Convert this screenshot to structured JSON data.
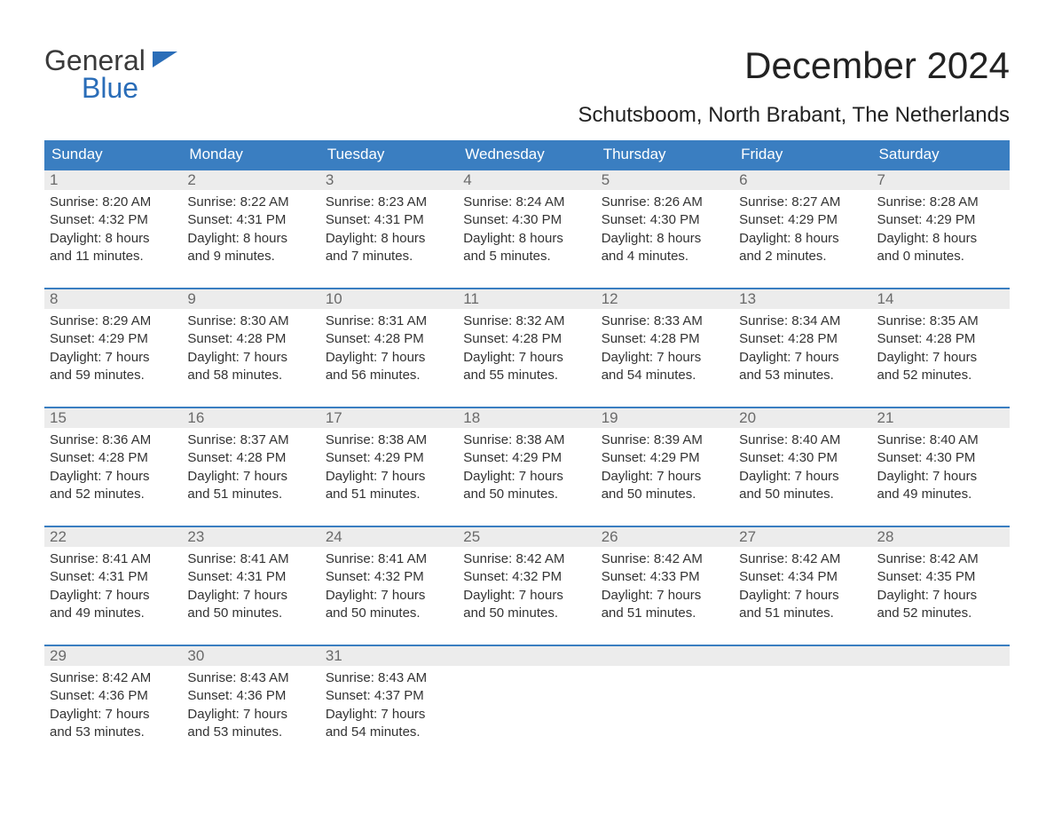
{
  "brand": {
    "word1": "General",
    "word2": "Blue",
    "word1_color": "#3a3a3a",
    "word2_color": "#2a6db8",
    "flag_color": "#2a6db8"
  },
  "title": "December 2024",
  "location": "Schutsboom, North Brabant, The Netherlands",
  "colors": {
    "header_bg": "#3a7ec1",
    "header_fg": "#ffffff",
    "daynum_bg": "#ececec",
    "daynum_fg": "#6a6a6a",
    "divider": "#3a7ec1",
    "text": "#333333",
    "page_bg": "#ffffff"
  },
  "fonts": {
    "title_size_pt": 32,
    "location_size_pt": 18,
    "dow_size_pt": 13,
    "body_size_pt": 11
  },
  "days_of_week": [
    "Sunday",
    "Monday",
    "Tuesday",
    "Wednesday",
    "Thursday",
    "Friday",
    "Saturday"
  ],
  "weeks": [
    [
      {
        "n": "1",
        "sunrise": "Sunrise: 8:20 AM",
        "sunset": "Sunset: 4:32 PM",
        "d1": "Daylight: 8 hours",
        "d2": "and 11 minutes."
      },
      {
        "n": "2",
        "sunrise": "Sunrise: 8:22 AM",
        "sunset": "Sunset: 4:31 PM",
        "d1": "Daylight: 8 hours",
        "d2": "and 9 minutes."
      },
      {
        "n": "3",
        "sunrise": "Sunrise: 8:23 AM",
        "sunset": "Sunset: 4:31 PM",
        "d1": "Daylight: 8 hours",
        "d2": "and 7 minutes."
      },
      {
        "n": "4",
        "sunrise": "Sunrise: 8:24 AM",
        "sunset": "Sunset: 4:30 PM",
        "d1": "Daylight: 8 hours",
        "d2": "and 5 minutes."
      },
      {
        "n": "5",
        "sunrise": "Sunrise: 8:26 AM",
        "sunset": "Sunset: 4:30 PM",
        "d1": "Daylight: 8 hours",
        "d2": "and 4 minutes."
      },
      {
        "n": "6",
        "sunrise": "Sunrise: 8:27 AM",
        "sunset": "Sunset: 4:29 PM",
        "d1": "Daylight: 8 hours",
        "d2": "and 2 minutes."
      },
      {
        "n": "7",
        "sunrise": "Sunrise: 8:28 AM",
        "sunset": "Sunset: 4:29 PM",
        "d1": "Daylight: 8 hours",
        "d2": "and 0 minutes."
      }
    ],
    [
      {
        "n": "8",
        "sunrise": "Sunrise: 8:29 AM",
        "sunset": "Sunset: 4:29 PM",
        "d1": "Daylight: 7 hours",
        "d2": "and 59 minutes."
      },
      {
        "n": "9",
        "sunrise": "Sunrise: 8:30 AM",
        "sunset": "Sunset: 4:28 PM",
        "d1": "Daylight: 7 hours",
        "d2": "and 58 minutes."
      },
      {
        "n": "10",
        "sunrise": "Sunrise: 8:31 AM",
        "sunset": "Sunset: 4:28 PM",
        "d1": "Daylight: 7 hours",
        "d2": "and 56 minutes."
      },
      {
        "n": "11",
        "sunrise": "Sunrise: 8:32 AM",
        "sunset": "Sunset: 4:28 PM",
        "d1": "Daylight: 7 hours",
        "d2": "and 55 minutes."
      },
      {
        "n": "12",
        "sunrise": "Sunrise: 8:33 AM",
        "sunset": "Sunset: 4:28 PM",
        "d1": "Daylight: 7 hours",
        "d2": "and 54 minutes."
      },
      {
        "n": "13",
        "sunrise": "Sunrise: 8:34 AM",
        "sunset": "Sunset: 4:28 PM",
        "d1": "Daylight: 7 hours",
        "d2": "and 53 minutes."
      },
      {
        "n": "14",
        "sunrise": "Sunrise: 8:35 AM",
        "sunset": "Sunset: 4:28 PM",
        "d1": "Daylight: 7 hours",
        "d2": "and 52 minutes."
      }
    ],
    [
      {
        "n": "15",
        "sunrise": "Sunrise: 8:36 AM",
        "sunset": "Sunset: 4:28 PM",
        "d1": "Daylight: 7 hours",
        "d2": "and 52 minutes."
      },
      {
        "n": "16",
        "sunrise": "Sunrise: 8:37 AM",
        "sunset": "Sunset: 4:28 PM",
        "d1": "Daylight: 7 hours",
        "d2": "and 51 minutes."
      },
      {
        "n": "17",
        "sunrise": "Sunrise: 8:38 AM",
        "sunset": "Sunset: 4:29 PM",
        "d1": "Daylight: 7 hours",
        "d2": "and 51 minutes."
      },
      {
        "n": "18",
        "sunrise": "Sunrise: 8:38 AM",
        "sunset": "Sunset: 4:29 PM",
        "d1": "Daylight: 7 hours",
        "d2": "and 50 minutes."
      },
      {
        "n": "19",
        "sunrise": "Sunrise: 8:39 AM",
        "sunset": "Sunset: 4:29 PM",
        "d1": "Daylight: 7 hours",
        "d2": "and 50 minutes."
      },
      {
        "n": "20",
        "sunrise": "Sunrise: 8:40 AM",
        "sunset": "Sunset: 4:30 PM",
        "d1": "Daylight: 7 hours",
        "d2": "and 50 minutes."
      },
      {
        "n": "21",
        "sunrise": "Sunrise: 8:40 AM",
        "sunset": "Sunset: 4:30 PM",
        "d1": "Daylight: 7 hours",
        "d2": "and 49 minutes."
      }
    ],
    [
      {
        "n": "22",
        "sunrise": "Sunrise: 8:41 AM",
        "sunset": "Sunset: 4:31 PM",
        "d1": "Daylight: 7 hours",
        "d2": "and 49 minutes."
      },
      {
        "n": "23",
        "sunrise": "Sunrise: 8:41 AM",
        "sunset": "Sunset: 4:31 PM",
        "d1": "Daylight: 7 hours",
        "d2": "and 50 minutes."
      },
      {
        "n": "24",
        "sunrise": "Sunrise: 8:41 AM",
        "sunset": "Sunset: 4:32 PM",
        "d1": "Daylight: 7 hours",
        "d2": "and 50 minutes."
      },
      {
        "n": "25",
        "sunrise": "Sunrise: 8:42 AM",
        "sunset": "Sunset: 4:32 PM",
        "d1": "Daylight: 7 hours",
        "d2": "and 50 minutes."
      },
      {
        "n": "26",
        "sunrise": "Sunrise: 8:42 AM",
        "sunset": "Sunset: 4:33 PM",
        "d1": "Daylight: 7 hours",
        "d2": "and 51 minutes."
      },
      {
        "n": "27",
        "sunrise": "Sunrise: 8:42 AM",
        "sunset": "Sunset: 4:34 PM",
        "d1": "Daylight: 7 hours",
        "d2": "and 51 minutes."
      },
      {
        "n": "28",
        "sunrise": "Sunrise: 8:42 AM",
        "sunset": "Sunset: 4:35 PM",
        "d1": "Daylight: 7 hours",
        "d2": "and 52 minutes."
      }
    ],
    [
      {
        "n": "29",
        "sunrise": "Sunrise: 8:42 AM",
        "sunset": "Sunset: 4:36 PM",
        "d1": "Daylight: 7 hours",
        "d2": "and 53 minutes."
      },
      {
        "n": "30",
        "sunrise": "Sunrise: 8:43 AM",
        "sunset": "Sunset: 4:36 PM",
        "d1": "Daylight: 7 hours",
        "d2": "and 53 minutes."
      },
      {
        "n": "31",
        "sunrise": "Sunrise: 8:43 AM",
        "sunset": "Sunset: 4:37 PM",
        "d1": "Daylight: 7 hours",
        "d2": "and 54 minutes."
      },
      {
        "n": "",
        "sunrise": "",
        "sunset": "",
        "d1": "",
        "d2": ""
      },
      {
        "n": "",
        "sunrise": "",
        "sunset": "",
        "d1": "",
        "d2": ""
      },
      {
        "n": "",
        "sunrise": "",
        "sunset": "",
        "d1": "",
        "d2": ""
      },
      {
        "n": "",
        "sunrise": "",
        "sunset": "",
        "d1": "",
        "d2": ""
      }
    ]
  ]
}
